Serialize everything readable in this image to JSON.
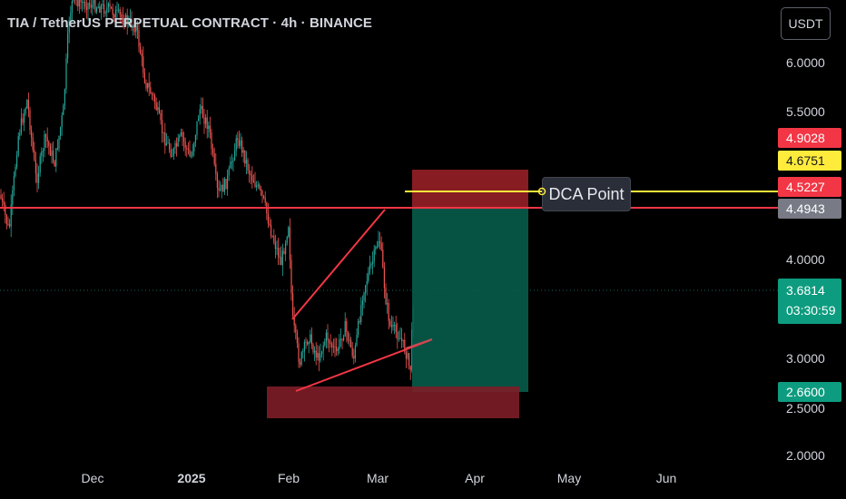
{
  "header": {
    "title": "TIA / TetherUS PERPETUAL CONTRACT · 4h · BINANCE"
  },
  "currency_button": "USDT",
  "price_axis": {
    "labels": [
      "6.0000",
      "5.5000",
      "4.0000",
      "3.0000",
      "2.5000",
      "2.0000"
    ]
  },
  "price_tags": {
    "stop_loss": "4.9028",
    "dca_level": "4.6751",
    "entry": "4.5227",
    "resistance": "4.4943",
    "last_price": "3.6814",
    "countdown": "03:30:59",
    "target": "2.6600"
  },
  "time_axis": {
    "labels": [
      {
        "text": "Dec",
        "bold": false
      },
      {
        "text": "2025",
        "bold": true
      },
      {
        "text": "Feb",
        "bold": false
      },
      {
        "text": "Mar",
        "bold": false
      },
      {
        "text": "Apr",
        "bold": false
      },
      {
        "text": "May",
        "bold": false
      },
      {
        "text": "Jun",
        "bold": false
      }
    ]
  },
  "annotation": {
    "dca_label": "DCA Point"
  },
  "colors": {
    "up": "#26a69a",
    "down": "#ef5350",
    "stop_zone": "#8e1d24",
    "profit_zone": "#075a4a",
    "support_zone": "#7e1d27",
    "resistance_line": "#f23645",
    "dca_line": "#ffeb3b",
    "trend_line": "#f23645"
  }
}
